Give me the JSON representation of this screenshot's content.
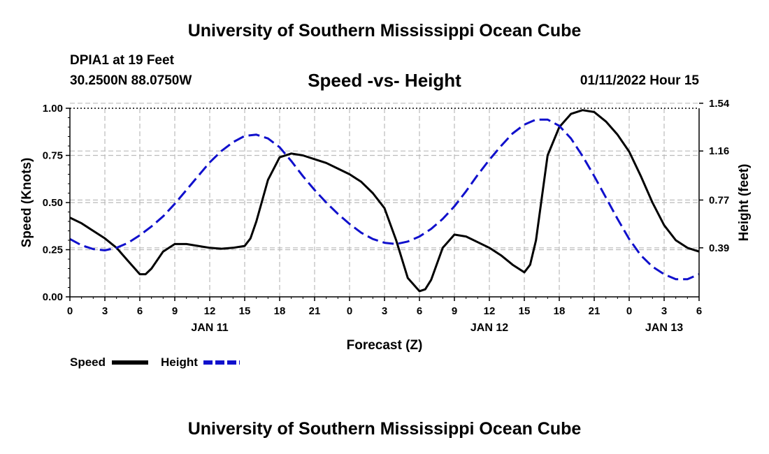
{
  "header": {
    "title": "University of Southern Mississippi Ocean Cube",
    "station": "DPIA1 at 19 Feet",
    "coordinates": "30.2500N  88.0750W",
    "subtitle": "Speed -vs- Height",
    "run_time": "01/11/2022 Hour 15"
  },
  "legend": {
    "speed_label": "Speed",
    "height_label": "Height"
  },
  "footer": {
    "title": "University of Southern Mississippi Ocean Cube"
  },
  "chart_data": {
    "type": "line",
    "title": "Speed -vs- Height",
    "xlabel": "Forecast (Z)",
    "ylabel_left": "Speed (Knots)",
    "ylabel_right": "Height (feet)",
    "x_unit": "forecast hours from 00Z Jan 11",
    "xlim": [
      0,
      54
    ],
    "x_ticks": [
      0,
      3,
      6,
      9,
      12,
      15,
      18,
      21,
      24,
      27,
      30,
      33,
      36,
      39,
      42,
      45,
      48,
      51,
      54
    ],
    "x_tick_labels": [
      "0",
      "3",
      "6",
      "9",
      "12",
      "15",
      "18",
      "21",
      "0",
      "3",
      "6",
      "9",
      "12",
      "15",
      "18",
      "21",
      "0",
      "3",
      "6"
    ],
    "date_labels": [
      {
        "x": 12,
        "label": "JAN 11"
      },
      {
        "x": 36,
        "label": "JAN 12"
      },
      {
        "x": 51,
        "label": "JAN 13"
      }
    ],
    "ylim_left": [
      0,
      1
    ],
    "y_ticks_left": [
      0,
      0.25,
      0.5,
      0.75,
      1.0
    ],
    "y_tick_labels_left": [
      "0.00",
      "0.25",
      "0.50",
      "0.75",
      "1.00"
    ],
    "ylim_right": [
      0,
      1.5
    ],
    "y_ticks_right": [
      0.39,
      0.77,
      1.16,
      1.54
    ],
    "y_tick_labels_right": [
      "0.39",
      "0.77",
      "1.16",
      "1.54"
    ],
    "grid": true,
    "series": [
      {
        "name": "Speed",
        "axis": "left",
        "color": "#000000",
        "style": "solid",
        "x": [
          0,
          1,
          2,
          3,
          4,
          5,
          6,
          6.5,
          7,
          8,
          9,
          10,
          11,
          12,
          13,
          14,
          15,
          15.5,
          16,
          17,
          18,
          19,
          20,
          21,
          22,
          23,
          24,
          25,
          26,
          27,
          28,
          29,
          30,
          30.5,
          31,
          32,
          33,
          34,
          35,
          36,
          37,
          38,
          39,
          39.5,
          40,
          41,
          42,
          43,
          44,
          45,
          46,
          47,
          48,
          49,
          50,
          51,
          52,
          53,
          54
        ],
        "values": [
          0.42,
          0.39,
          0.35,
          0.31,
          0.26,
          0.19,
          0.12,
          0.12,
          0.15,
          0.24,
          0.28,
          0.28,
          0.27,
          0.26,
          0.255,
          0.26,
          0.27,
          0.31,
          0.4,
          0.62,
          0.74,
          0.76,
          0.75,
          0.73,
          0.71,
          0.68,
          0.65,
          0.61,
          0.55,
          0.47,
          0.3,
          0.1,
          0.03,
          0.04,
          0.09,
          0.26,
          0.33,
          0.32,
          0.29,
          0.26,
          0.22,
          0.17,
          0.13,
          0.17,
          0.3,
          0.75,
          0.9,
          0.97,
          0.99,
          0.98,
          0.93,
          0.86,
          0.77,
          0.64,
          0.5,
          0.38,
          0.3,
          0.26,
          0.24
        ]
      },
      {
        "name": "Height",
        "axis": "right",
        "color": "#1010cc",
        "style": "dashed",
        "x": [
          0,
          1,
          2,
          3,
          4,
          5,
          6,
          7,
          8,
          9,
          10,
          11,
          12,
          13,
          14,
          15,
          16,
          17,
          18,
          19,
          20,
          21,
          22,
          23,
          24,
          25,
          26,
          27,
          28,
          29,
          30,
          31,
          32,
          33,
          34,
          35,
          36,
          37,
          38,
          39,
          40,
          41,
          42,
          43,
          44,
          45,
          46,
          47,
          48,
          49,
          50,
          51,
          52,
          53,
          54
        ],
        "values": [
          0.46,
          0.41,
          0.38,
          0.37,
          0.39,
          0.43,
          0.49,
          0.56,
          0.64,
          0.74,
          0.85,
          0.96,
          1.07,
          1.16,
          1.23,
          1.28,
          1.29,
          1.26,
          1.19,
          1.08,
          0.96,
          0.85,
          0.75,
          0.66,
          0.58,
          0.51,
          0.46,
          0.43,
          0.42,
          0.44,
          0.48,
          0.54,
          0.62,
          0.72,
          0.84,
          0.97,
          1.09,
          1.2,
          1.3,
          1.37,
          1.41,
          1.41,
          1.36,
          1.26,
          1.12,
          0.96,
          0.79,
          0.62,
          0.46,
          0.33,
          0.24,
          0.18,
          0.14,
          0.14,
          0.18
        ]
      }
    ]
  }
}
